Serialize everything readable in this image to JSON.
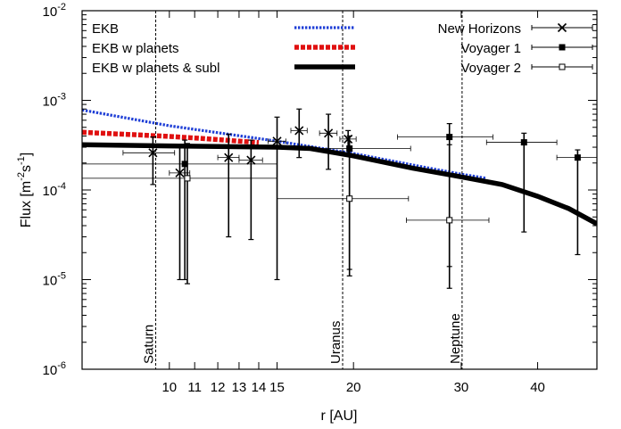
{
  "chart_data": {
    "type": "line",
    "xlabel": "r [AU]",
    "ylabel_base": "Flux [m",
    "ylabel_exp1": "-2",
    "ylabel_mid": "s",
    "ylabel_exp2": "-1",
    "ylabel_end": "]",
    "x_scale": "log",
    "y_scale": "log",
    "xlim": [
      7.2,
      50
    ],
    "ylim": [
      1e-06,
      0.01
    ],
    "grid": false,
    "legend_position": "top",
    "x_ticks": [
      {
        "value": 10,
        "label": "10"
      },
      {
        "value": 11,
        "label": "11"
      },
      {
        "value": 12,
        "label": "12"
      },
      {
        "value": 13,
        "label": "13"
      },
      {
        "value": 14,
        "label": "14"
      },
      {
        "value": 15,
        "label": "15"
      },
      {
        "value": 20,
        "label": "20"
      },
      {
        "value": 30,
        "label": "30"
      },
      {
        "value": 40,
        "label": "40"
      }
    ],
    "y_ticks": [
      {
        "exp": -6,
        "label_base": "10",
        "label_exp": "-6"
      },
      {
        "exp": -5,
        "label_base": "10",
        "label_exp": "-5"
      },
      {
        "exp": -4,
        "label_base": "10",
        "label_exp": "-4"
      },
      {
        "exp": -3,
        "label_base": "10",
        "label_exp": "-3"
      },
      {
        "exp": -2,
        "label_base": "10",
        "label_exp": "-2"
      }
    ],
    "planet_lines": [
      {
        "name": "Saturn",
        "x": 9.5
      },
      {
        "name": "Uranus",
        "x": 19.2
      },
      {
        "name": "Neptune",
        "x": 30.1
      }
    ],
    "series": [
      {
        "name": "EKB",
        "style": "dotted",
        "color": "#1f3fd6",
        "x": [
          7.2,
          10,
          15,
          20,
          25,
          30,
          33
        ],
        "y": [
          0.00078,
          0.00052,
          0.00035,
          0.000255,
          0.00019,
          0.00015,
          0.000135
        ]
      },
      {
        "name": "EKB w planets",
        "style": "dashed",
        "color": "#e01010",
        "x": [
          7.2,
          8,
          9,
          10,
          11,
          12,
          13,
          14
        ],
        "y": [
          0.00044,
          0.000425,
          0.00041,
          0.000395,
          0.00038,
          0.000365,
          0.00035,
          0.000338
        ]
      },
      {
        "name": "EKB w planets & subl",
        "style": "solid",
        "color": "#000000",
        "x": [
          7.2,
          10,
          12,
          15,
          17,
          20,
          25,
          30,
          35,
          40,
          45,
          50
        ],
        "y": [
          0.00032,
          0.00031,
          0.000305,
          0.0003,
          0.00029,
          0.00024,
          0.000175,
          0.00014,
          0.000115,
          8.5e-05,
          6.2e-05,
          4.2e-05
        ]
      }
    ],
    "measurements": [
      {
        "name": "New Horizons",
        "marker": "x",
        "points": [
          {
            "x": 9.4,
            "y": 0.00026,
            "xmin": 8.4,
            "xmax": 10.2,
            "ymin": 0.000115,
            "ymax": 0.00039
          },
          {
            "x": 10.4,
            "y": 0.000155,
            "xmin": 10.0,
            "xmax": 10.8,
            "ymin": 1e-05,
            "ymax": 0.0003
          },
          {
            "x": 12.5,
            "y": 0.00023,
            "xmin": 12.0,
            "xmax": 13.0,
            "ymin": 3e-05,
            "ymax": 0.00042
          },
          {
            "x": 13.6,
            "y": 0.000215,
            "xmin": 13.0,
            "xmax": 14.2,
            "ymin": 2.8e-05,
            "ymax": 0.00036
          },
          {
            "x": 15.0,
            "y": 0.00035,
            "xmin": 14.5,
            "xmax": 15.5,
            "ymin": 1e-05,
            "ymax": 0.00065
          },
          {
            "x": 16.3,
            "y": 0.00046,
            "xmin": 15.8,
            "xmax": 16.8,
            "ymin": 0.00023,
            "ymax": 0.0008
          },
          {
            "x": 18.2,
            "y": 0.00043,
            "xmin": 17.6,
            "xmax": 18.8,
            "ymin": 0.00017,
            "ymax": 0.0007
          },
          {
            "x": 19.6,
            "y": 0.00037,
            "xmin": 19.0,
            "xmax": 20.2,
            "ymin": 0.00025,
            "ymax": 0.00046
          }
        ]
      },
      {
        "name": "Voyager 1",
        "marker": "filled-square",
        "points": [
          {
            "x": 10.6,
            "y": 0.000195,
            "xmin": 7.2,
            "xmax": 15.0,
            "ymin": 1e-05,
            "ymax": 0.00036
          },
          {
            "x": 19.7,
            "y": 0.00029,
            "xmin": 15.0,
            "xmax": 24.8,
            "ymin": 1.3e-05,
            "ymax": 0.0004
          },
          {
            "x": 28.7,
            "y": 0.00039,
            "xmin": 23.6,
            "xmax": 33.8,
            "ymin": 1.4e-05,
            "ymax": 0.00055
          },
          {
            "x": 38.0,
            "y": 0.00034,
            "xmin": 33.0,
            "xmax": 43.0,
            "ymin": 3.4e-05,
            "ymax": 0.00043
          },
          {
            "x": 46.5,
            "y": 0.00023,
            "xmin": 43.0,
            "xmax": 50.0,
            "ymin": 1.9e-05,
            "ymax": 0.00028
          }
        ]
      },
      {
        "name": "Voyager 2",
        "marker": "open-square",
        "points": [
          {
            "x": 10.7,
            "y": 0.000135,
            "xmin": 7.2,
            "xmax": 15.0,
            "ymin": 9e-06,
            "ymax": 0.00033
          },
          {
            "x": 19.7,
            "y": 8e-05,
            "xmin": 15.0,
            "xmax": 24.6,
            "ymin": 1.1e-05,
            "ymax": 0.0003
          },
          {
            "x": 28.7,
            "y": 4.6e-05,
            "xmin": 24.4,
            "xmax": 33.3,
            "ymin": 8e-06,
            "ymax": 0.00032
          }
        ]
      }
    ],
    "legend": [
      {
        "label": "EKB",
        "style": "dotted",
        "color": "#1f3fd6"
      },
      {
        "label": "EKB w planets",
        "style": "dashed",
        "color": "#e01010"
      },
      {
        "label": "EKB w planets & subl",
        "style": "solid",
        "color": "#000000"
      },
      {
        "label": "New Horizons",
        "marker": "x"
      },
      {
        "label": "Voyager 1",
        "marker": "filled-square"
      },
      {
        "label": "Voyager 2",
        "marker": "open-square"
      }
    ]
  }
}
